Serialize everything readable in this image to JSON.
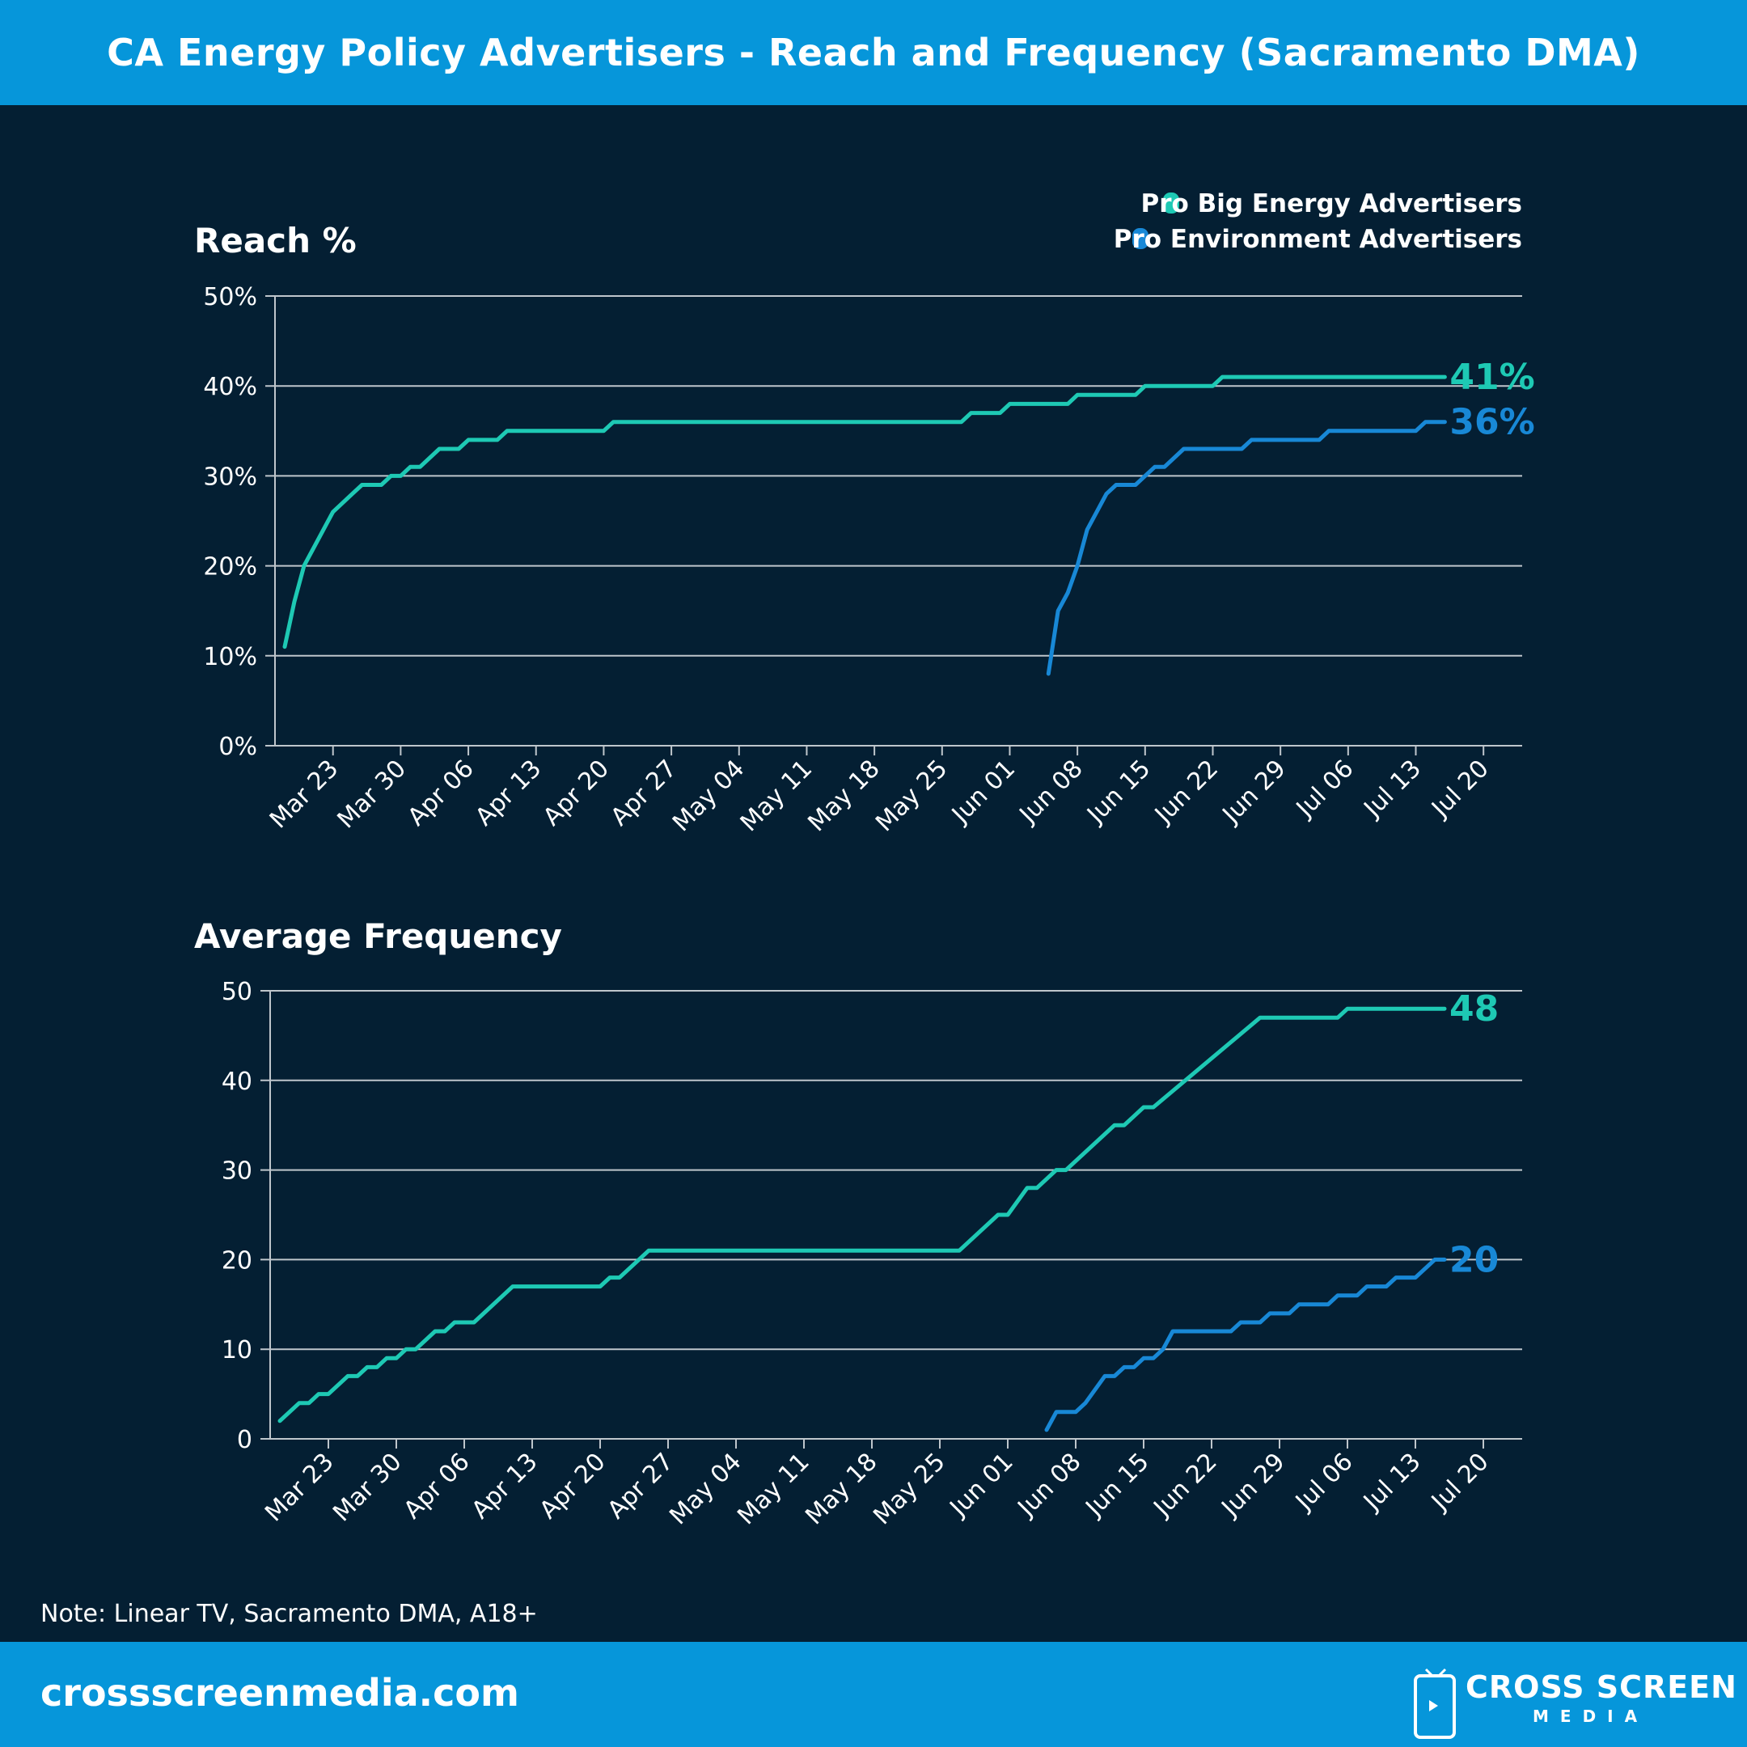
{
  "header": {
    "title": "CA Energy Policy Advertisers - Reach and Frequency (Sacramento DMA)"
  },
  "legend": [
    {
      "label": "Pro Big Energy Advertisers",
      "color": "#1ec9b4"
    },
    {
      "label": "Pro Environment Advertisers",
      "color": "#1888d6"
    }
  ],
  "note": "Note: Linear TV, Sacramento DMA, A18+",
  "footer": {
    "url": "crossscreenmedia.com",
    "logo_main": "CROSS SCREEN",
    "logo_sub": "MEDIA",
    "icon": "tv-play-icon"
  },
  "colors": {
    "header_bg": "#0696da",
    "page_bg": "#041f33",
    "grid": "#bfc6cc",
    "big_energy": "#1ec9b4",
    "environment": "#1888d6"
  },
  "x_ticks": [
    "Mar 23",
    "Mar 30",
    "Apr 06",
    "Apr 13",
    "Apr 20",
    "Apr 27",
    "May 04",
    "May 11",
    "May 18",
    "May 25",
    "Jun 01",
    "Jun 08",
    "Jun 15",
    "Jun 22",
    "Jun 29",
    "Jul 06",
    "Jul 13",
    "Jul 20"
  ],
  "chart_data": [
    {
      "type": "line",
      "title": "Reach %",
      "xlabel": "",
      "ylabel": "",
      "xlim": [
        "2024-03-17",
        "2024-07-24"
      ],
      "ylim": [
        0,
        50
      ],
      "y_ticks": [
        "0%",
        "10%",
        "20%",
        "30%",
        "40%",
        "50%"
      ],
      "grid": true,
      "legend_position": "top-right",
      "series": [
        {
          "name": "Pro Big Energy Advertisers",
          "end_label": "41%",
          "points": [
            [
              "2024-03-18",
              11
            ],
            [
              "2024-03-19",
              16
            ],
            [
              "2024-03-20",
              20
            ],
            [
              "2024-03-21",
              22
            ],
            [
              "2024-03-22",
              24
            ],
            [
              "2024-03-23",
              26
            ],
            [
              "2024-03-25",
              28
            ],
            [
              "2024-03-26",
              29
            ],
            [
              "2024-03-28",
              29
            ],
            [
              "2024-03-29",
              30
            ],
            [
              "2024-03-30",
              30
            ],
            [
              "2024-03-31",
              31
            ],
            [
              "2024-04-01",
              31
            ],
            [
              "2024-04-03",
              33
            ],
            [
              "2024-04-05",
              33
            ],
            [
              "2024-04-06",
              34
            ],
            [
              "2024-04-09",
              34
            ],
            [
              "2024-04-10",
              35
            ],
            [
              "2024-04-20",
              35
            ],
            [
              "2024-04-21",
              36
            ],
            [
              "2024-05-27",
              36
            ],
            [
              "2024-05-28",
              37
            ],
            [
              "2024-05-31",
              37
            ],
            [
              "2024-06-01",
              38
            ],
            [
              "2024-06-07",
              38
            ],
            [
              "2024-06-08",
              39
            ],
            [
              "2024-06-14",
              39
            ],
            [
              "2024-06-15",
              40
            ],
            [
              "2024-06-22",
              40
            ],
            [
              "2024-06-23",
              41
            ],
            [
              "2024-07-16",
              41
            ]
          ]
        },
        {
          "name": "Pro Environment Advertisers",
          "end_label": "36%",
          "points": [
            [
              "2024-06-05",
              8
            ],
            [
              "2024-06-06",
              15
            ],
            [
              "2024-06-07",
              17
            ],
            [
              "2024-06-08",
              20
            ],
            [
              "2024-06-09",
              24
            ],
            [
              "2024-06-10",
              26
            ],
            [
              "2024-06-11",
              28
            ],
            [
              "2024-06-12",
              29
            ],
            [
              "2024-06-14",
              29
            ],
            [
              "2024-06-15",
              30
            ],
            [
              "2024-06-16",
              31
            ],
            [
              "2024-06-17",
              31
            ],
            [
              "2024-06-19",
              33
            ],
            [
              "2024-06-25",
              33
            ],
            [
              "2024-06-26",
              34
            ],
            [
              "2024-07-03",
              34
            ],
            [
              "2024-07-04",
              35
            ],
            [
              "2024-07-13",
              35
            ],
            [
              "2024-07-14",
              36
            ],
            [
              "2024-07-16",
              36
            ]
          ]
        }
      ]
    },
    {
      "type": "line",
      "title": "Average Frequency",
      "xlabel": "",
      "ylabel": "",
      "xlim": [
        "2024-03-17",
        "2024-07-24"
      ],
      "ylim": [
        0,
        50
      ],
      "y_ticks": [
        "0",
        "10",
        "20",
        "30",
        "40",
        "50"
      ],
      "grid": true,
      "series": [
        {
          "name": "Pro Big Energy Advertisers",
          "end_label": "48",
          "points": [
            [
              "2024-03-18",
              2
            ],
            [
              "2024-03-20",
              4
            ],
            [
              "2024-03-21",
              4
            ],
            [
              "2024-03-22",
              5
            ],
            [
              "2024-03-23",
              5
            ],
            [
              "2024-03-25",
              7
            ],
            [
              "2024-03-26",
              7
            ],
            [
              "2024-03-27",
              8
            ],
            [
              "2024-03-28",
              8
            ],
            [
              "2024-03-29",
              9
            ],
            [
              "2024-03-30",
              9
            ],
            [
              "2024-03-31",
              10
            ],
            [
              "2024-04-01",
              10
            ],
            [
              "2024-04-03",
              12
            ],
            [
              "2024-04-04",
              12
            ],
            [
              "2024-04-05",
              13
            ],
            [
              "2024-04-07",
              13
            ],
            [
              "2024-04-11",
              17
            ],
            [
              "2024-04-20",
              17
            ],
            [
              "2024-04-21",
              18
            ],
            [
              "2024-04-22",
              18
            ],
            [
              "2024-04-25",
              21
            ],
            [
              "2024-05-27",
              21
            ],
            [
              "2024-05-31",
              25
            ],
            [
              "2024-06-01",
              25
            ],
            [
              "2024-06-03",
              28
            ],
            [
              "2024-06-04",
              28
            ],
            [
              "2024-06-06",
              30
            ],
            [
              "2024-06-07",
              30
            ],
            [
              "2024-06-12",
              35
            ],
            [
              "2024-06-13",
              35
            ],
            [
              "2024-06-15",
              37
            ],
            [
              "2024-06-16",
              37
            ],
            [
              "2024-06-27",
              47
            ],
            [
              "2024-07-05",
              47
            ],
            [
              "2024-07-06",
              48
            ],
            [
              "2024-07-16",
              48
            ]
          ]
        },
        {
          "name": "Pro Environment Advertisers",
          "end_label": "20",
          "points": [
            [
              "2024-06-05",
              1
            ],
            [
              "2024-06-06",
              3
            ],
            [
              "2024-06-08",
              3
            ],
            [
              "2024-06-09",
              4
            ],
            [
              "2024-06-11",
              7
            ],
            [
              "2024-06-12",
              7
            ],
            [
              "2024-06-13",
              8
            ],
            [
              "2024-06-14",
              8
            ],
            [
              "2024-06-15",
              9
            ],
            [
              "2024-06-16",
              9
            ],
            [
              "2024-06-17",
              10
            ],
            [
              "2024-06-18",
              12
            ],
            [
              "2024-06-24",
              12
            ],
            [
              "2024-06-25",
              13
            ],
            [
              "2024-06-27",
              13
            ],
            [
              "2024-06-28",
              14
            ],
            [
              "2024-06-30",
              14
            ],
            [
              "2024-07-01",
              15
            ],
            [
              "2024-07-04",
              15
            ],
            [
              "2024-07-05",
              16
            ],
            [
              "2024-07-07",
              16
            ],
            [
              "2024-07-08",
              17
            ],
            [
              "2024-07-10",
              17
            ],
            [
              "2024-07-11",
              18
            ],
            [
              "2024-07-13",
              18
            ],
            [
              "2024-07-15",
              20
            ],
            [
              "2024-07-16",
              20
            ]
          ]
        }
      ]
    }
  ]
}
